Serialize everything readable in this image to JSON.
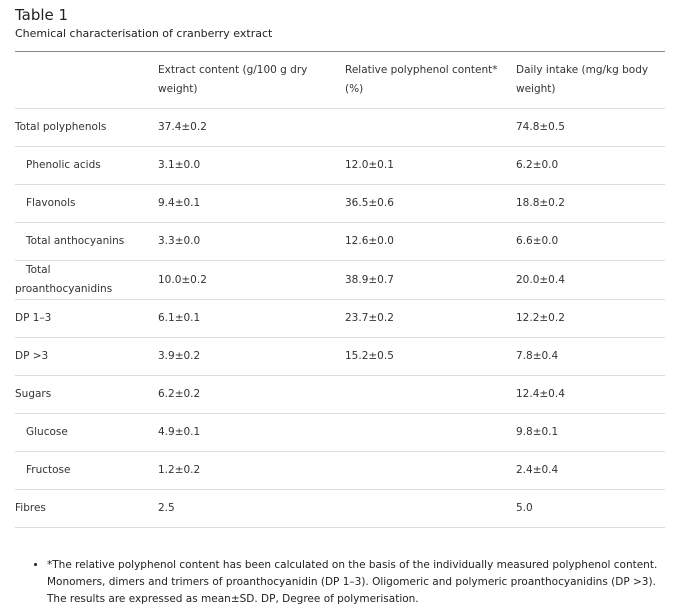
{
  "header": {
    "title": "Table 1",
    "subtitle": "Chemical characterisation of cranberry extract"
  },
  "table": {
    "columns": [
      null,
      "Extract content (g/100 g dry weight)",
      "Relative polyphenol content* (%)",
      "Daily intake (mg/kg body weight)"
    ],
    "rows": [
      [
        "Total polyphenols",
        "37.4±0.2",
        null,
        "74.8±0.5"
      ],
      [
        "Phenolic acids",
        "3.1±0.0",
        "12.0±0.1",
        "6.2±0.0"
      ],
      [
        "Flavonols",
        "9.4±0.1",
        "36.5±0.6",
        "18.8±0.2"
      ],
      [
        "Total anthocyanins",
        "3.3±0.0",
        "12.6±0.0",
        "6.6±0.0"
      ],
      [
        "Total proanthocyanidins",
        "10.0±0.2",
        "38.9±0.7",
        "20.0±0.4"
      ],
      [
        "DP 1–3",
        "6.1±0.1",
        "23.7±0.2",
        "12.2±0.2"
      ],
      [
        "DP >3",
        "3.9±0.2",
        "15.2±0.5",
        "7.8±0.4"
      ],
      [
        "Sugars",
        "6.2±0.2",
        null,
        "12.4±0.4"
      ],
      [
        "Glucose",
        "4.9±0.1",
        null,
        "9.8±0.1"
      ],
      [
        "Fructose",
        "1.2±0.2",
        null,
        "2.4±0.4"
      ],
      [
        "Fibres",
        "2.5",
        null,
        "5.0"
      ]
    ]
  },
  "footnotes": [
    "*The relative polyphenol content has been calculated on the basis of the individually measured polyphenol content. Monomers, dimers and trimers of proanthocyanidin (DP 1–3). Oligomeric and polymeric proanthocyanidins (DP >3). The results are expressed as mean±SD. DP, Degree of polymerisation."
  ]
}
